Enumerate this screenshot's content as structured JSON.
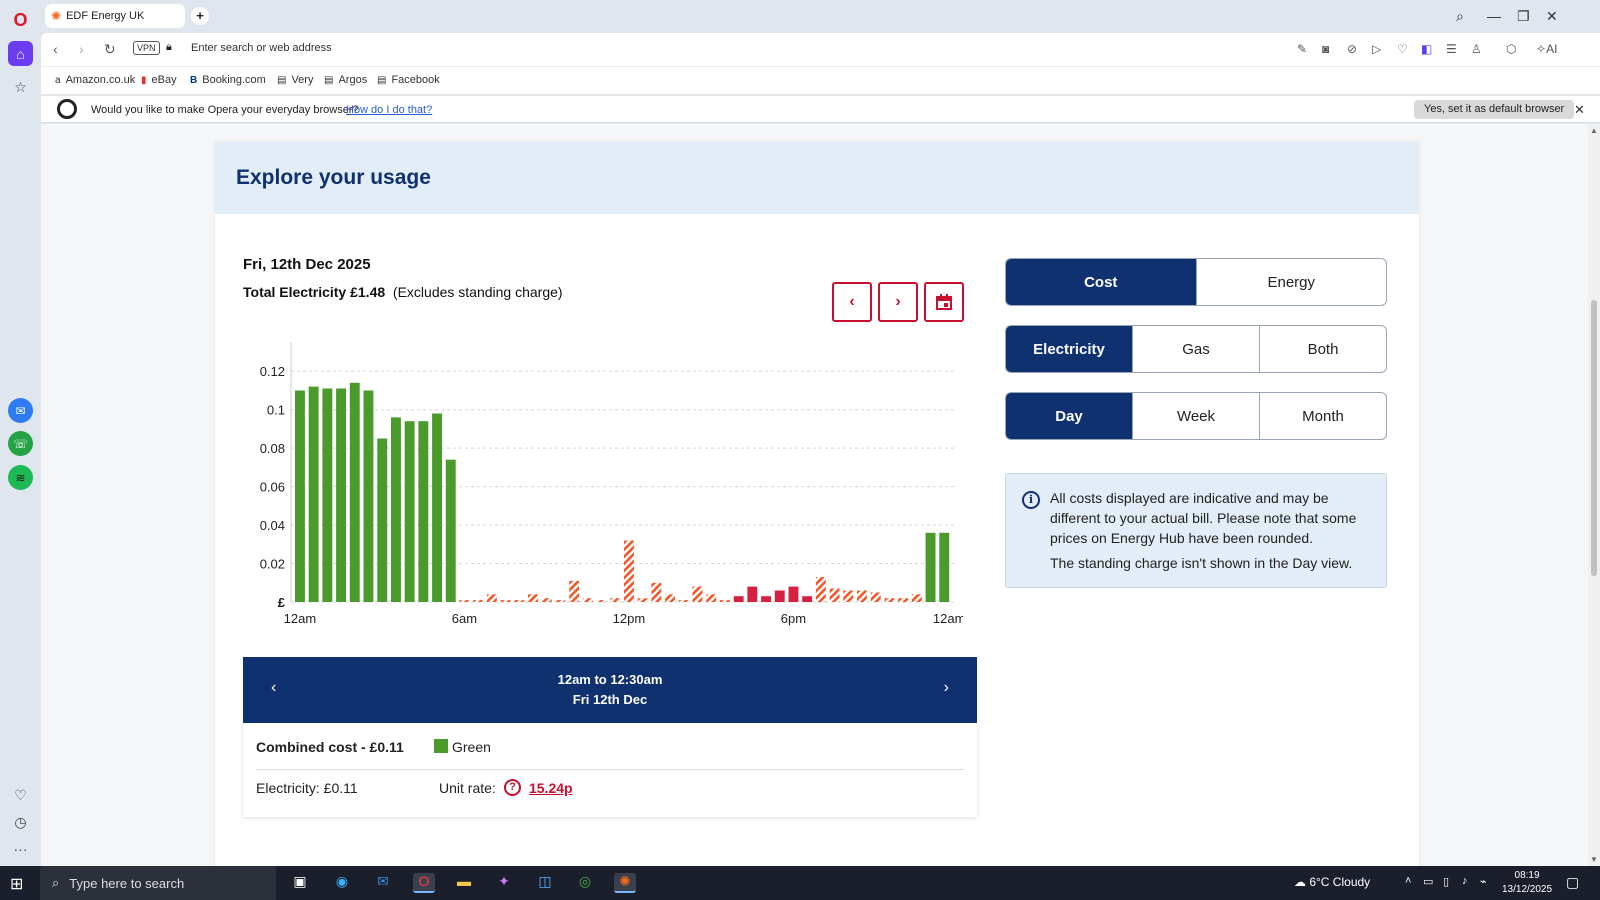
{
  "browser": {
    "tab_title": "EDF Energy UK",
    "address_placeholder": "Enter search or web address",
    "vpn_label": "VPN",
    "ai_label": "AI",
    "bookmarks": [
      "Amazon.co.uk",
      "eBay",
      "Booking.com",
      "Very",
      "Argos",
      "Facebook"
    ],
    "infobar": {
      "message": "Would you like to make Opera your everyday browser?",
      "link": "How do I do that?",
      "button": "Yes, set it as default browser"
    }
  },
  "page": {
    "heading": "Explore your usage",
    "date": "Fri, 12th Dec 2025",
    "total_label": "Total Electricity £1.48",
    "total_note": "(Excludes standing charge)",
    "toggles": {
      "metric": [
        "Cost",
        "Energy"
      ],
      "fuel": [
        "Electricity",
        "Gas",
        "Both"
      ],
      "period": [
        "Day",
        "Week",
        "Month"
      ]
    },
    "info": {
      "text1": "All costs displayed are indicative and may be different to your actual bill. Please note that some prices on Energy Hub have been rounded.",
      "text2": "The standing charge isn't shown in the Day view."
    },
    "slot": {
      "time": "12am to 12:30am",
      "date": "Fri 12th Dec",
      "combined": "Combined cost - £0.11",
      "legend": "Green",
      "electricity": "Electricity: £0.11",
      "unit_label": "Unit rate:",
      "unit_value": "15.24p"
    }
  },
  "chart_data": {
    "type": "bar",
    "ylabel": "£",
    "yticks": [
      "0.12",
      "0.1",
      "0.08",
      "0.06",
      "0.04",
      "0.02",
      "£"
    ],
    "ylim": [
      0,
      0.13
    ],
    "xtick_labels": [
      "12am",
      "6am",
      "12pm",
      "6pm",
      "12am"
    ],
    "grid": true,
    "values": [
      0.11,
      0.112,
      0.111,
      0.111,
      0.114,
      0.11,
      0.085,
      0.096,
      0.094,
      0.094,
      0.098,
      0.074,
      0.001,
      0.001,
      0.004,
      0.001,
      0.001,
      0.004,
      0.002,
      0.001,
      0.011,
      0.002,
      0.001,
      0.002,
      0.032,
      0.002,
      0.01,
      0.004,
      0.001,
      0.008,
      0.004,
      0.001,
      0.003,
      0.008,
      0.003,
      0.006,
      0.008,
      0.003,
      0.013,
      0.007,
      0.006,
      0.006,
      0.005,
      0.002,
      0.002,
      0.004,
      0.036,
      0.036
    ],
    "bar_styles": [
      "green",
      "green",
      "green",
      "green",
      "green",
      "green",
      "green",
      "green",
      "green",
      "green",
      "green",
      "green",
      "peak",
      "peak",
      "peak",
      "peak",
      "peak",
      "peak",
      "peak",
      "peak",
      "peak",
      "peak",
      "peak",
      "peak",
      "peak",
      "peak",
      "peak",
      "peak",
      "peak",
      "peak",
      "peak",
      "peak",
      "red",
      "red",
      "red",
      "red",
      "red",
      "red",
      "peak",
      "peak",
      "peak",
      "peak",
      "peak",
      "peak",
      "peak",
      "peak",
      "green",
      "green"
    ],
    "colors": {
      "green": "#4a9a2c",
      "peak": "#f0582a",
      "red": "#d6203f"
    }
  }
}
